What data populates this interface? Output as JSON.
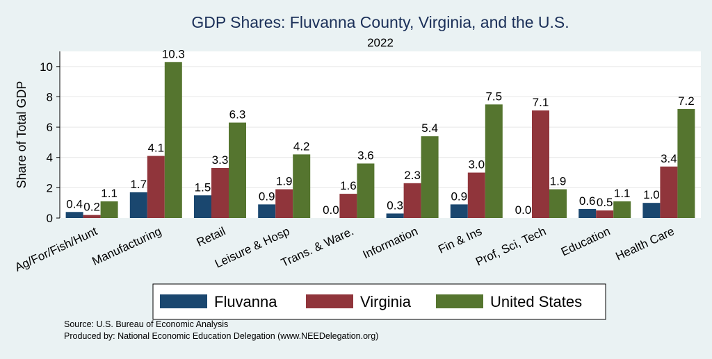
{
  "chart_data": {
    "type": "bar",
    "title": "GDP Shares: Fluvanna County, Virginia, and the U.S.",
    "subtitle": "2022",
    "xlabel": "",
    "ylabel": "Share of Total GDP",
    "ylim": [
      0,
      11
    ],
    "yticks": [
      0,
      2,
      4,
      6,
      8,
      10
    ],
    "grid": true,
    "legend_position": "bottom",
    "categories": [
      "Ag/For/Fish/Hunt",
      "Manufacturing",
      "Retail",
      "Leisure & Hosp",
      "Trans. & Ware.",
      "Information",
      "Fin & Ins",
      "Prof, Sci, Tech",
      "Education",
      "Health Care"
    ],
    "series": [
      {
        "name": "Fluvanna",
        "color": "#1a476f",
        "values": [
          0.4,
          1.7,
          1.5,
          0.9,
          0.0,
          0.3,
          0.9,
          0.0,
          0.6,
          1.0
        ]
      },
      {
        "name": "Virginia",
        "color": "#90353b",
        "values": [
          0.2,
          4.1,
          3.3,
          1.9,
          1.6,
          2.3,
          3.0,
          7.1,
          0.5,
          3.4
        ]
      },
      {
        "name": "United States",
        "color": "#55752f",
        "values": [
          1.1,
          10.3,
          6.3,
          4.2,
          3.6,
          5.4,
          7.5,
          1.9,
          1.1,
          7.2
        ]
      }
    ]
  },
  "notes": {
    "source": "Source: U.S. Bureau of Economic Analysis",
    "produced_by": "Produced by: National Economic Education Delegation (www.NEEDelegation.org)"
  }
}
